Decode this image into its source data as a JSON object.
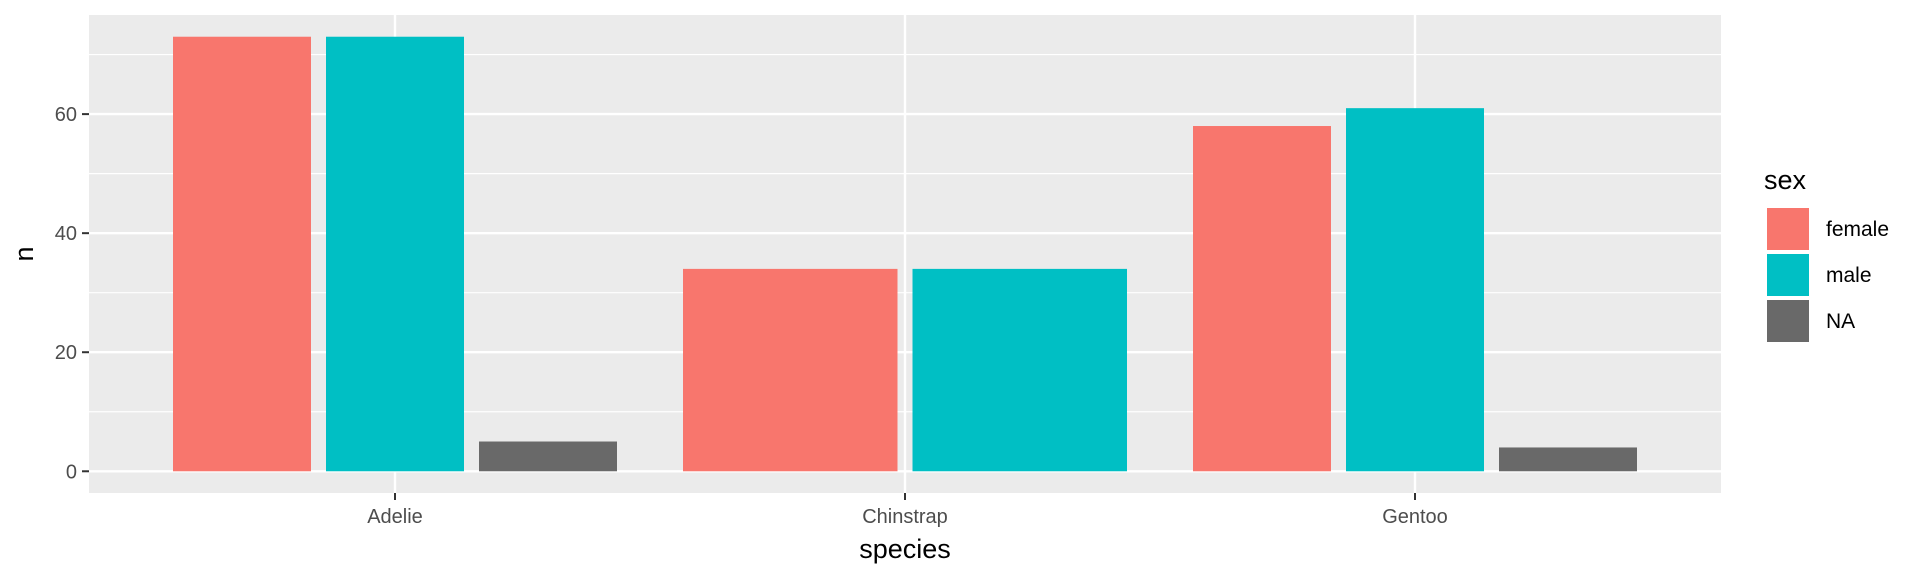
{
  "chart_data": {
    "type": "bar",
    "title": "",
    "xlabel": "species",
    "ylabel": "n",
    "categories": [
      "Adelie",
      "Chinstrap",
      "Gentoo"
    ],
    "series": [
      {
        "name": "female",
        "color": "#F8766D",
        "values": [
          73,
          34,
          58
        ]
      },
      {
        "name": "male",
        "color": "#00BFC4",
        "values": [
          73,
          34,
          61
        ]
      },
      {
        "name": "NA",
        "color": "#696969",
        "values": [
          5,
          null,
          4
        ]
      }
    ],
    "ylim": [
      -3.65,
      76.65
    ],
    "yticks": [
      0,
      20,
      40,
      60
    ],
    "grid": true,
    "panel_background": "#EBEBEB",
    "legend": {
      "title": "sex",
      "position": "right"
    }
  }
}
